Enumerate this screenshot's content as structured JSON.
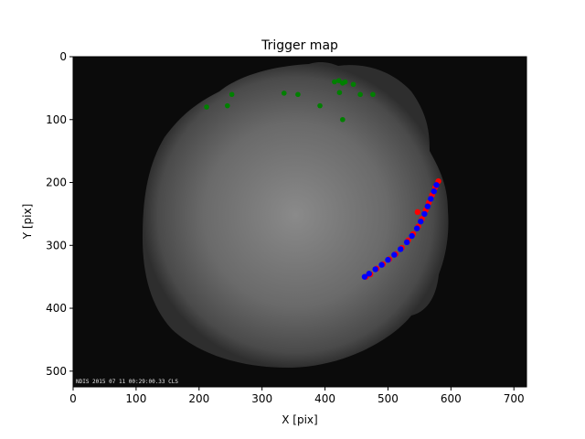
{
  "chart_data": {
    "type": "scatter",
    "title": "Trigger map",
    "xlabel": "X [pix]",
    "ylabel": "Y [pix]",
    "xlim": [
      0,
      720
    ],
    "ylim": [
      0,
      525
    ],
    "y_inverted": true,
    "grid": false,
    "x_ticks": [
      0,
      100,
      200,
      300,
      400,
      500,
      600,
      700
    ],
    "y_ticks": [
      0,
      100,
      200,
      300,
      400,
      500
    ],
    "background": "all-sky camera frame (grayscale, circular fisheye)",
    "overlay_text": "NDIS 2015 07 11 00:29:00.33 CLS",
    "series": [
      {
        "color": "#008000",
        "points": [
          [
            212,
            80
          ],
          [
            245,
            78
          ],
          [
            252,
            60
          ],
          [
            335,
            58
          ],
          [
            357,
            60
          ],
          [
            392,
            78
          ],
          [
            415,
            40
          ],
          [
            422,
            38
          ],
          [
            428,
            42
          ],
          [
            432,
            40
          ],
          [
            445,
            44
          ],
          [
            423,
            57
          ],
          [
            456,
            60
          ],
          [
            476,
            60
          ],
          [
            428,
            100
          ]
        ]
      },
      {
        "color": "#ff0000",
        "points": [
          [
            465,
            350
          ],
          [
            472,
            346
          ],
          [
            482,
            337
          ],
          [
            492,
            330
          ],
          [
            502,
            322
          ],
          [
            512,
            314
          ],
          [
            522,
            304
          ],
          [
            532,
            292
          ],
          [
            540,
            282
          ],
          [
            548,
            270
          ],
          [
            554,
            258
          ],
          [
            560,
            244
          ],
          [
            565,
            232
          ],
          [
            570,
            220
          ],
          [
            575,
            208
          ],
          [
            580,
            198
          ],
          [
            547,
            247
          ]
        ]
      },
      {
        "color": "#0000ff",
        "points": [
          [
            463,
            350
          ],
          [
            470,
            345
          ],
          [
            480,
            338
          ],
          [
            490,
            331
          ],
          [
            500,
            323
          ],
          [
            510,
            315
          ],
          [
            520,
            306
          ],
          [
            530,
            295
          ],
          [
            538,
            285
          ],
          [
            546,
            273
          ],
          [
            552,
            262
          ],
          [
            558,
            250
          ],
          [
            563,
            238
          ],
          [
            568,
            226
          ],
          [
            573,
            214
          ],
          [
            577,
            204
          ]
        ]
      }
    ]
  }
}
